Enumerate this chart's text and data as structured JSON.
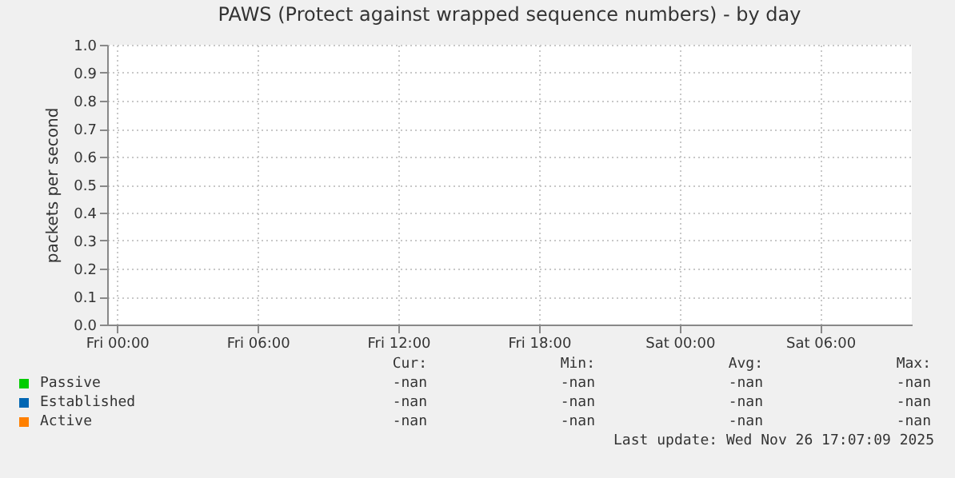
{
  "chart_data": {
    "type": "line",
    "title": "PAWS (Protect against wrapped sequence numbers) - by day",
    "ylabel": "packets per second",
    "categories": [
      "Fri 00:00",
      "Fri 06:00",
      "Fri 12:00",
      "Fri 18:00",
      "Sat 00:00",
      "Sat 06:00"
    ],
    "series": [
      {
        "name": "Passive",
        "color": "#00cc00",
        "values": [
          null,
          null,
          null,
          null,
          null,
          null
        ]
      },
      {
        "name": "Established",
        "color": "#0066b3",
        "values": [
          null,
          null,
          null,
          null,
          null,
          null
        ]
      },
      {
        "name": "Active",
        "color": "#ff8000",
        "values": [
          null,
          null,
          null,
          null,
          null,
          null
        ]
      }
    ],
    "ylim": [
      0,
      1
    ],
    "yticks": [
      {
        "value": 0,
        "label": "0.0"
      },
      0.1,
      0.2,
      0.3,
      0.4,
      0.5,
      0.6,
      0.7,
      0.8,
      0.9,
      {
        "value": 1,
        "label": "1.0"
      }
    ],
    "grid": true,
    "legend": "bottom",
    "annotations": [
      "Cur:\tMin:\tAvg:\tMax:",
      "-nan\t-nan\t-nan\t-nan",
      "-nan\t-nan\t-nan\t-nan",
      "-nan\t-nan\t-nan\t-nan",
      "Last update: Wed Nov 26 17:07:09 2025"
    ]
  }
}
